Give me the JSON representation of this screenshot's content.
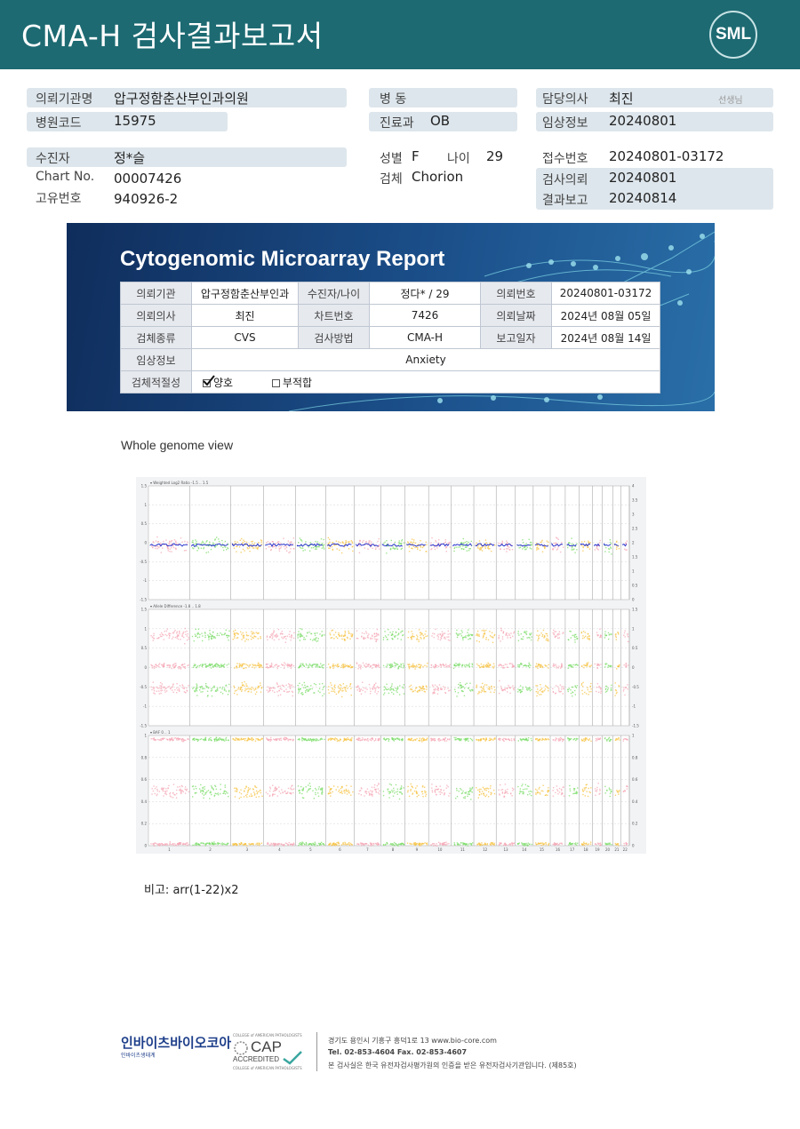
{
  "header": {
    "title": "CMA-H 검사결과보고서",
    "logo_text": "SML"
  },
  "info": {
    "referral_org_label": "의뢰기관명",
    "referral_org": "압구정함춘산부인과의원",
    "hospital_code_label": "병원코드",
    "hospital_code": "15975",
    "ward_label": "병 동",
    "ward": "",
    "department_label": "진료과",
    "department": "OB",
    "doctor_label": "담당의사",
    "doctor": "최진",
    "doctor_suffix": "선생님",
    "clinical_label": "임상정보",
    "clinical": "20240801",
    "patient_label": "수진자",
    "patient": "정*슬",
    "chart_label": "Chart No.",
    "chart": "00007426",
    "id_label": "고유번호",
    "id": "940926-2",
    "sex_label": "성별",
    "sex": "F",
    "age_label": "나이",
    "age": "29",
    "specimen_label": "검체",
    "specimen": "Chorion",
    "receipt_label": "접수번호",
    "receipt": "20240801-03172",
    "request_label": "검사의뢰",
    "request": "20240801",
    "result_label": "결과보고",
    "result": "20240814"
  },
  "banner": {
    "title": "Cytogenomic Microarray Report",
    "rows": [
      [
        "의뢰기관",
        "압구정함춘산부인과",
        "수진자/나이",
        "정다* / 29",
        "의뢰번호",
        "20240801-03172"
      ],
      [
        "의뢰의사",
        "최진",
        "차트번호",
        "7426",
        "의뢰날짜",
        "2024년 08월 05일"
      ],
      [
        "검체종류",
        "CVS",
        "검사방법",
        "CMA-H",
        "보고일자",
        "2024년 08월 14일"
      ]
    ],
    "clinical_label": "임상정보",
    "clinical_value": "Anxiety",
    "adequacy_label": "검체적절성",
    "adequate": "양호",
    "inadequate": "부적합"
  },
  "genome": {
    "title": "Whole genome view",
    "panel1_label": "Weighted Log2 Ratio -1.5 .. 1.5",
    "panel2_label": "Allele Difference -1.8 .. 1.8",
    "panel3_label": "BAF 0 .. 1",
    "panel1_left_ticks": [
      "1.5",
      "1",
      "0.5",
      "0",
      "-0.5",
      "-1",
      "-1.5"
    ],
    "panel1_right_ticks": [
      "4",
      "3.5",
      "3",
      "2.5",
      "2",
      "1.5",
      "1",
      "0.5",
      "0"
    ],
    "panel2_ticks": [
      "1.5",
      "1",
      "0.5",
      "0",
      "-0.5",
      "-1",
      "-1.5"
    ],
    "panel3_ticks": [
      "1",
      "0.8",
      "0.6",
      "0.4",
      "0.2",
      "0"
    ],
    "chromosomes": [
      "1",
      "2",
      "3",
      "4",
      "5",
      "6",
      "7",
      "8",
      "9",
      "10",
      "11",
      "12",
      "13",
      "14",
      "15",
      "16",
      "17",
      "18",
      "19",
      "20",
      "21",
      "22"
    ],
    "colors": {
      "pink": "#f4a6b4",
      "green": "#7cdc6a",
      "orange": "#f5c242",
      "blue": "#1a26c9"
    }
  },
  "remark": {
    "label": "비고:",
    "value": "arr(1-22)x2"
  },
  "footer": {
    "brand": "인바이츠바이오코아",
    "brand_sub": "인바이츠생태계",
    "cap_top": "COLLEGE of AMERICAN PATHOLOGISTS",
    "cap_word": "CAP",
    "cap_accredited": "ACCREDITED",
    "cap_bottom": "COLLEGE of AMERICAN PATHOLOGISTS",
    "address": "경기도 용인시 기흥구 흥덕1로 13    www.bio-core.com",
    "tel": "Tel. 02-853-4604   Fax. 02-853-4607",
    "cert": "본 검사실은 한국 유전자검사평가원의 인증을 받은 유전자검사기관입니다. (제85호)"
  }
}
